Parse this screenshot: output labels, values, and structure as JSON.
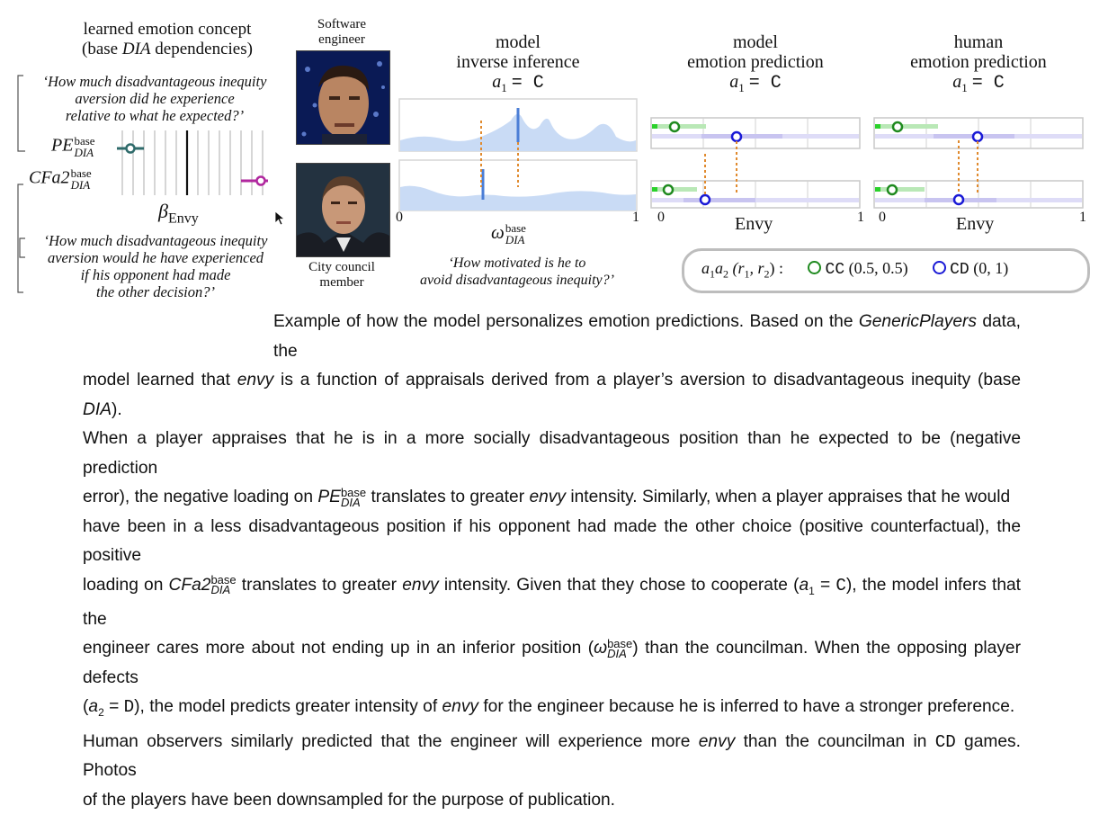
{
  "left": {
    "title_line1": "learned emotion concept",
    "title_line2_pre": "(base ",
    "title_line2_it": "DIA",
    "title_line2_post": " dependencies)",
    "quote1_l1": "‘How much disadvantageous inequity",
    "quote1_l2": "aversion did he experience",
    "quote1_l3": "relative to what he expected?’",
    "pe_label": "PE",
    "pe_sup": "base",
    "pe_sub": "DIA",
    "cfa_label": "CFa2",
    "cfa_sup": "base",
    "cfa_sub": "DIA",
    "beta_symbol": "β",
    "beta_sub": "Envy",
    "quote2_l1": "‘How much disadvantageous inequity",
    "quote2_l2": "aversion would he have experienced",
    "quote2_l3": "if his opponent had made",
    "quote2_l4": "the other decision?’"
  },
  "photos": {
    "top_cap_l1": "Software",
    "top_cap_l2": "engineer",
    "bottom_cap_l1": "City council",
    "bottom_cap_l2": "member"
  },
  "inverse": {
    "title_l1": "model",
    "title_l2": "inverse inference",
    "cond": "a",
    "cond_sub": "1",
    "cond_eq": "= C",
    "tick0": "0",
    "tick1": "1",
    "omega": "ω",
    "omega_sup": "base",
    "omega_sub": "DIA",
    "note_l1": "‘How motivated is he to",
    "note_l2": "avoid disadvantageous inequity?’"
  },
  "model_pred": {
    "title_l1": "model",
    "title_l2": "emotion prediction",
    "cond": "a",
    "cond_sub": "1",
    "cond_eq": "= C",
    "xlabel": "Envy",
    "tick0": "0",
    "tick1": "1"
  },
  "human_pred": {
    "title_l1": "human",
    "title_l2": "emotion prediction",
    "cond": "a",
    "cond_sub": "1",
    "cond_eq": "= C",
    "xlabel": "Envy",
    "tick0": "0",
    "tick1": "1"
  },
  "legend": {
    "lead": "a",
    "lead_sub1": "1",
    "lead_mid": "a",
    "lead_sub2": "2",
    "pair": " (r",
    "pair_sub1": "1",
    "pair_mid": ", r",
    "pair_sub2": "2",
    "pair_end": ") :",
    "cc_code": "CC",
    "cc_val": "(0.5, 0.5)",
    "cd_code": "CD",
    "cd_val": "(0, 1)"
  },
  "colors": {
    "cc": "#1f8a1f",
    "cd": "#1a1ad6",
    "pe_marker": "#2f6b6b",
    "cfa_marker": "#b0279e",
    "density_fill": "#c9dbf5",
    "density_line": "#4b7ed6",
    "dashed": "#e08a2e"
  },
  "caption": {
    "lines": [
      "Example of how the model personalizes emotion predictions. Based on the GenericPlayers data, the",
      "model learned that envy is a function of appraisals derived from a player’s aversion to disadvantageous inequity (base DIA).",
      "When a player appraises that he is in a more socially disadvantageous position than he expected to be (negative prediction",
      "error), the negative loading on PE translates to greater envy intensity. Similarly, when a player appraises that he would",
      "have been in a less disadvantageous position if his opponent had made the other choice (positive counterfactual), the positive",
      "loading on CFa2 translates to greater envy intensity. Given that they chose to cooperate (a1 = C), the model infers that the",
      "engineer cares more about not ending up in an inferior position (ω) than the councilman. When the opposing player defects",
      "(a2 = D), the model predicts greater intensity of envy for the engineer because he is inferred to have a stronger preference.",
      "Human observers similarly predicted that the engineer will experience more envy than the councilman in CD games. Photos",
      "of the players have been downsampled for the purpose of publication."
    ]
  }
}
